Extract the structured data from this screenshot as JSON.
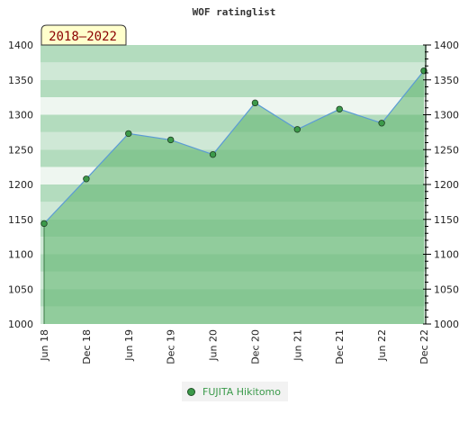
{
  "chart_data": {
    "type": "area",
    "title": "WOF ratinglist",
    "period_label": "2018–2022",
    "x": [
      "Jun 18",
      "Dec 18",
      "Jun 19",
      "Dec 19",
      "Jun 20",
      "Dec 20",
      "Jun 21",
      "Dec 21",
      "Jun 22",
      "Dec 22"
    ],
    "series": [
      {
        "name": "FUJITA Hikitomo",
        "values": [
          1144,
          1208,
          1273,
          1264,
          1243,
          1317,
          1279,
          1308,
          1288,
          1363
        ]
      }
    ],
    "y_ticks": [
      1000,
      1050,
      1100,
      1150,
      1200,
      1250,
      1300,
      1350,
      1400
    ],
    "ylim": [
      1000,
      1400
    ],
    "y_axis_left": true,
    "y_axis_right": true,
    "grid": "banded",
    "legend_position": "bottom",
    "colors": {
      "area_fill": "#5fb46e",
      "line": "#5b9bd5",
      "marker": "#3c9a4a",
      "band_dark": "#b3dcbe",
      "band_light": "#eef6f0",
      "title_box": "#ffffcc",
      "title_text": "#8b0000",
      "legend_text": "#3a9a4a"
    }
  }
}
